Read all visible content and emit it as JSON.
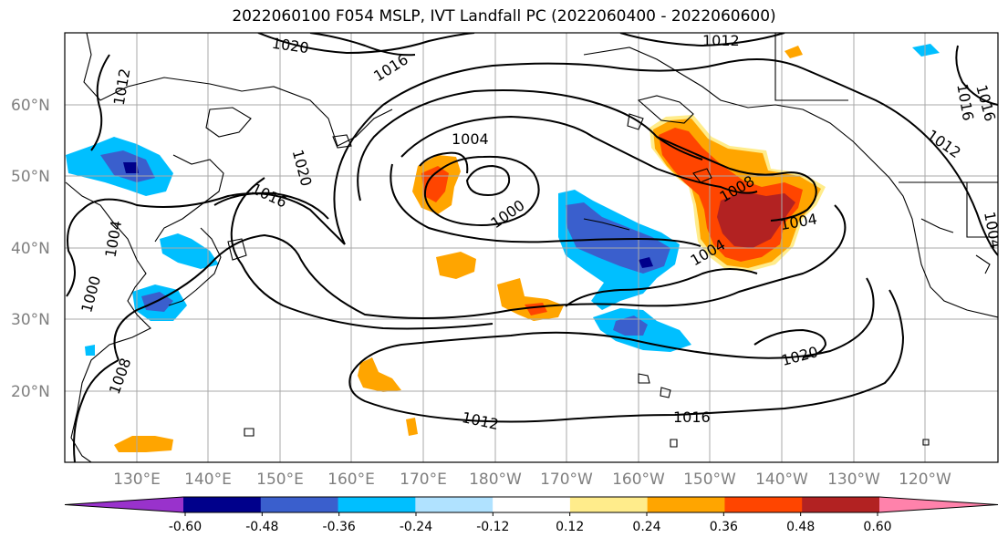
{
  "title": "2022060100 F054 MSLP, IVT Landfall PC (2022060400 - 2022060600)",
  "latitude_labels": [
    "60°N",
    "50°N",
    "40°N",
    "30°N",
    "20°N"
  ],
  "longitude_labels": [
    "130°E",
    "140°E",
    "150°E",
    "160°E",
    "170°E",
    "180°W",
    "170°W",
    "160°W",
    "150°W",
    "140°W",
    "130°W",
    "120°W"
  ],
  "mslp_contour_labels": [
    "1020",
    "1016",
    "1012",
    "1004",
    "1020",
    "1016",
    "1004",
    "1000",
    "1016",
    "1008",
    "1004",
    "1012",
    "1004",
    "1004",
    "1000",
    "1008",
    "1020",
    "1016",
    "1012",
    "1016",
    "1012"
  ],
  "colorbar": {
    "tick_labels": [
      "-0.60",
      "-0.48",
      "-0.36",
      "-0.24",
      "-0.12",
      "0.12",
      "0.24",
      "0.36",
      "0.48",
      "0.60"
    ],
    "colors": [
      "#9932cc",
      "#00008b",
      "#3a5fcd",
      "#00bfff",
      "#b0e2ff",
      "#ffffff",
      "#ffec8b",
      "#ffa500",
      "#ff4500",
      "#b22222",
      "#ff82ab"
    ]
  },
  "shading_colors": {
    "light_blue": "#00bfff",
    "medium_blue": "#3a5fcd",
    "dark_blue": "#00008b",
    "yellow": "#ffec8b",
    "orange": "#ffa500",
    "red_orange": "#ff4500",
    "dark_red": "#b22222"
  }
}
